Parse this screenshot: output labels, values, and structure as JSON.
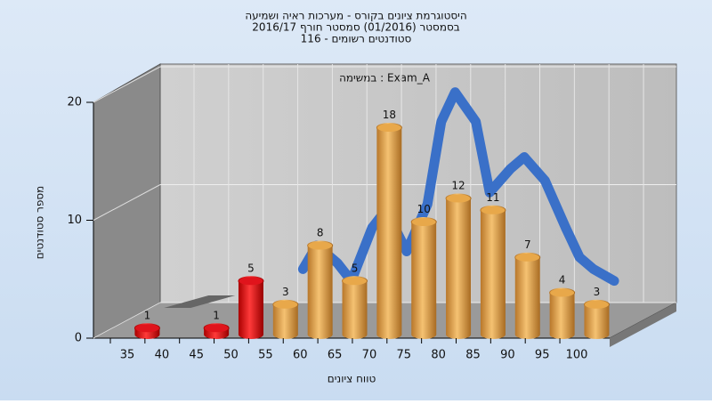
{
  "chart_data": {
    "type": "bar",
    "title": "היסטוגרמת ציונים בקורס - מערכות ראיה ושמיעה",
    "subtitle": "בסמסטר  (01/2016)  סמסטר חורף 2016/17",
    "subtitle2": "סטודנטים רשומים - 116",
    "annotation": "במשימה : Exam_A",
    "x_label": "טווח ציונים",
    "y_label": "מספר סטודנטים",
    "categories": [
      "35",
      "40",
      "45",
      "50",
      "55",
      "60",
      "65",
      "70",
      "75",
      "80",
      "85",
      "90",
      "95",
      "100"
    ],
    "values": [
      1,
      0,
      1,
      5,
      3,
      8,
      5,
      18,
      10,
      12,
      11,
      7,
      4,
      3
    ],
    "colors": [
      "#e0141c",
      "#e0141c",
      "#e0141c",
      "#e0141c",
      "#e8a84a",
      "#e8a84a",
      "#e8a84a",
      "#e8a84a",
      "#e8a84a",
      "#e8a84a",
      "#e8a84a",
      "#e8a84a",
      "#e8a84a",
      "#e8a84a"
    ],
    "ylim": [
      0,
      20
    ],
    "yticks": [
      0,
      10,
      20
    ],
    "grid": true,
    "curve": {
      "color": "#3a70c8",
      "x": [
        55,
        57,
        60,
        62,
        65,
        67,
        70,
        73,
        75,
        77,
        80,
        82,
        85,
        87,
        90,
        93,
        95,
        97,
        100
      ],
      "values": [
        4.5,
        6.5,
        5,
        3.5,
        8,
        9.5,
        6,
        10,
        17,
        19.5,
        17,
        11,
        13,
        14,
        12,
        8,
        5.5,
        4.5,
        3.5
      ]
    }
  }
}
